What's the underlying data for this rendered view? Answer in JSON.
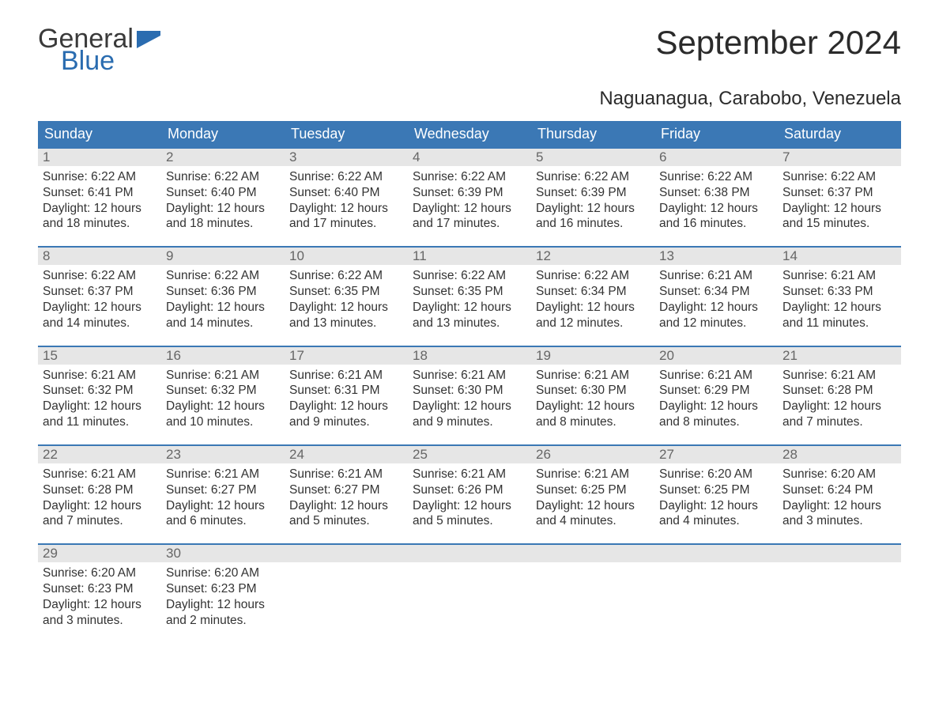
{
  "logo": {
    "text_general": "General",
    "text_blue": "Blue",
    "flag_color": "#2a6cb0"
  },
  "header": {
    "month_title": "September 2024",
    "location": "Naguanagua, Carabobo, Venezuela"
  },
  "colors": {
    "header_bar": "#3b78b5",
    "header_text": "#ffffff",
    "daynum_bg": "#e6e6e6",
    "daynum_text": "#666666",
    "body_text": "#333333",
    "rule": "#3b78b5",
    "background": "#ffffff"
  },
  "typography": {
    "month_title_fontsize": 42,
    "location_fontsize": 24,
    "dow_fontsize": 18,
    "daynum_fontsize": 17,
    "body_fontsize": 15.5
  },
  "days_of_week": [
    "Sunday",
    "Monday",
    "Tuesday",
    "Wednesday",
    "Thursday",
    "Friday",
    "Saturday"
  ],
  "weeks": [
    [
      {
        "n": "1",
        "sunrise": "Sunrise: 6:22 AM",
        "sunset": "Sunset: 6:41 PM",
        "d1": "Daylight: 12 hours",
        "d2": "and 18 minutes."
      },
      {
        "n": "2",
        "sunrise": "Sunrise: 6:22 AM",
        "sunset": "Sunset: 6:40 PM",
        "d1": "Daylight: 12 hours",
        "d2": "and 18 minutes."
      },
      {
        "n": "3",
        "sunrise": "Sunrise: 6:22 AM",
        "sunset": "Sunset: 6:40 PM",
        "d1": "Daylight: 12 hours",
        "d2": "and 17 minutes."
      },
      {
        "n": "4",
        "sunrise": "Sunrise: 6:22 AM",
        "sunset": "Sunset: 6:39 PM",
        "d1": "Daylight: 12 hours",
        "d2": "and 17 minutes."
      },
      {
        "n": "5",
        "sunrise": "Sunrise: 6:22 AM",
        "sunset": "Sunset: 6:39 PM",
        "d1": "Daylight: 12 hours",
        "d2": "and 16 minutes."
      },
      {
        "n": "6",
        "sunrise": "Sunrise: 6:22 AM",
        "sunset": "Sunset: 6:38 PM",
        "d1": "Daylight: 12 hours",
        "d2": "and 16 minutes."
      },
      {
        "n": "7",
        "sunrise": "Sunrise: 6:22 AM",
        "sunset": "Sunset: 6:37 PM",
        "d1": "Daylight: 12 hours",
        "d2": "and 15 minutes."
      }
    ],
    [
      {
        "n": "8",
        "sunrise": "Sunrise: 6:22 AM",
        "sunset": "Sunset: 6:37 PM",
        "d1": "Daylight: 12 hours",
        "d2": "and 14 minutes."
      },
      {
        "n": "9",
        "sunrise": "Sunrise: 6:22 AM",
        "sunset": "Sunset: 6:36 PM",
        "d1": "Daylight: 12 hours",
        "d2": "and 14 minutes."
      },
      {
        "n": "10",
        "sunrise": "Sunrise: 6:22 AM",
        "sunset": "Sunset: 6:35 PM",
        "d1": "Daylight: 12 hours",
        "d2": "and 13 minutes."
      },
      {
        "n": "11",
        "sunrise": "Sunrise: 6:22 AM",
        "sunset": "Sunset: 6:35 PM",
        "d1": "Daylight: 12 hours",
        "d2": "and 13 minutes."
      },
      {
        "n": "12",
        "sunrise": "Sunrise: 6:22 AM",
        "sunset": "Sunset: 6:34 PM",
        "d1": "Daylight: 12 hours",
        "d2": "and 12 minutes."
      },
      {
        "n": "13",
        "sunrise": "Sunrise: 6:21 AM",
        "sunset": "Sunset: 6:34 PM",
        "d1": "Daylight: 12 hours",
        "d2": "and 12 minutes."
      },
      {
        "n": "14",
        "sunrise": "Sunrise: 6:21 AM",
        "sunset": "Sunset: 6:33 PM",
        "d1": "Daylight: 12 hours",
        "d2": "and 11 minutes."
      }
    ],
    [
      {
        "n": "15",
        "sunrise": "Sunrise: 6:21 AM",
        "sunset": "Sunset: 6:32 PM",
        "d1": "Daylight: 12 hours",
        "d2": "and 11 minutes."
      },
      {
        "n": "16",
        "sunrise": "Sunrise: 6:21 AM",
        "sunset": "Sunset: 6:32 PM",
        "d1": "Daylight: 12 hours",
        "d2": "and 10 minutes."
      },
      {
        "n": "17",
        "sunrise": "Sunrise: 6:21 AM",
        "sunset": "Sunset: 6:31 PM",
        "d1": "Daylight: 12 hours",
        "d2": "and 9 minutes."
      },
      {
        "n": "18",
        "sunrise": "Sunrise: 6:21 AM",
        "sunset": "Sunset: 6:30 PM",
        "d1": "Daylight: 12 hours",
        "d2": "and 9 minutes."
      },
      {
        "n": "19",
        "sunrise": "Sunrise: 6:21 AM",
        "sunset": "Sunset: 6:30 PM",
        "d1": "Daylight: 12 hours",
        "d2": "and 8 minutes."
      },
      {
        "n": "20",
        "sunrise": "Sunrise: 6:21 AM",
        "sunset": "Sunset: 6:29 PM",
        "d1": "Daylight: 12 hours",
        "d2": "and 8 minutes."
      },
      {
        "n": "21",
        "sunrise": "Sunrise: 6:21 AM",
        "sunset": "Sunset: 6:28 PM",
        "d1": "Daylight: 12 hours",
        "d2": "and 7 minutes."
      }
    ],
    [
      {
        "n": "22",
        "sunrise": "Sunrise: 6:21 AM",
        "sunset": "Sunset: 6:28 PM",
        "d1": "Daylight: 12 hours",
        "d2": "and 7 minutes."
      },
      {
        "n": "23",
        "sunrise": "Sunrise: 6:21 AM",
        "sunset": "Sunset: 6:27 PM",
        "d1": "Daylight: 12 hours",
        "d2": "and 6 minutes."
      },
      {
        "n": "24",
        "sunrise": "Sunrise: 6:21 AM",
        "sunset": "Sunset: 6:27 PM",
        "d1": "Daylight: 12 hours",
        "d2": "and 5 minutes."
      },
      {
        "n": "25",
        "sunrise": "Sunrise: 6:21 AM",
        "sunset": "Sunset: 6:26 PM",
        "d1": "Daylight: 12 hours",
        "d2": "and 5 minutes."
      },
      {
        "n": "26",
        "sunrise": "Sunrise: 6:21 AM",
        "sunset": "Sunset: 6:25 PM",
        "d1": "Daylight: 12 hours",
        "d2": "and 4 minutes."
      },
      {
        "n": "27",
        "sunrise": "Sunrise: 6:20 AM",
        "sunset": "Sunset: 6:25 PM",
        "d1": "Daylight: 12 hours",
        "d2": "and 4 minutes."
      },
      {
        "n": "28",
        "sunrise": "Sunrise: 6:20 AM",
        "sunset": "Sunset: 6:24 PM",
        "d1": "Daylight: 12 hours",
        "d2": "and 3 minutes."
      }
    ],
    [
      {
        "n": "29",
        "sunrise": "Sunrise: 6:20 AM",
        "sunset": "Sunset: 6:23 PM",
        "d1": "Daylight: 12 hours",
        "d2": "and 3 minutes."
      },
      {
        "n": "30",
        "sunrise": "Sunrise: 6:20 AM",
        "sunset": "Sunset: 6:23 PM",
        "d1": "Daylight: 12 hours",
        "d2": "and 2 minutes."
      },
      {
        "empty": true
      },
      {
        "empty": true
      },
      {
        "empty": true
      },
      {
        "empty": true
      },
      {
        "empty": true
      }
    ]
  ]
}
